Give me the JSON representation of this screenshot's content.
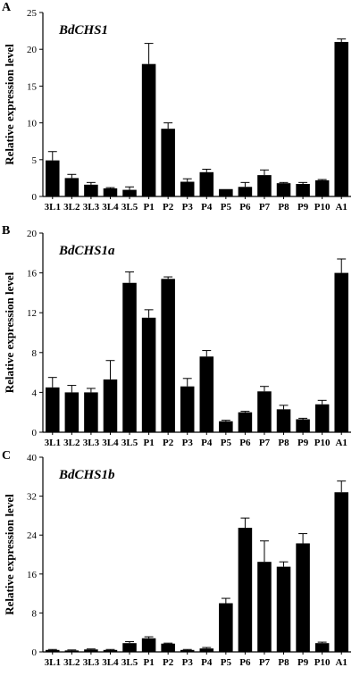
{
  "chart_data": [
    {
      "type": "bar",
      "panel": "A",
      "title": "BdCHS1",
      "ylabel": "Relative expression level",
      "xlabel": "",
      "categories": [
        "3L1",
        "3L2",
        "3L3",
        "3L4",
        "3L5",
        "P1",
        "P2",
        "P3",
        "P4",
        "P5",
        "P6",
        "P7",
        "P8",
        "P9",
        "P10",
        "A1"
      ],
      "values": [
        4.9,
        2.5,
        1.6,
        1.1,
        0.9,
        18.0,
        9.2,
        2.0,
        3.3,
        1.0,
        1.3,
        2.9,
        1.8,
        1.7,
        2.2,
        21.0
      ],
      "errors": [
        1.2,
        0.5,
        0.3,
        0.1,
        0.4,
        2.8,
        0.8,
        0.4,
        0.4,
        0.0,
        0.6,
        0.7,
        0.1,
        0.2,
        0.1,
        0.4
      ],
      "ylim": [
        0,
        25
      ],
      "yticks": [
        0,
        5,
        10,
        15,
        20,
        25
      ],
      "grid": false,
      "legend": "none"
    },
    {
      "type": "bar",
      "panel": "B",
      "title": "BdCHS1a",
      "ylabel": "Relative expression level",
      "xlabel": "",
      "categories": [
        "3L1",
        "3L2",
        "3L3",
        "3L4",
        "3L5",
        "P1",
        "P2",
        "P3",
        "P4",
        "P5",
        "P6",
        "P7",
        "P8",
        "P9",
        "P10",
        "A1"
      ],
      "values": [
        4.5,
        4.0,
        4.0,
        5.3,
        15.0,
        11.5,
        15.4,
        4.6,
        7.6,
        1.1,
        2.0,
        4.1,
        2.3,
        1.3,
        2.8,
        16.0
      ],
      "errors": [
        1.0,
        0.7,
        0.4,
        1.9,
        1.1,
        0.8,
        0.2,
        0.8,
        0.6,
        0.1,
        0.1,
        0.5,
        0.4,
        0.1,
        0.4,
        1.4
      ],
      "ylim": [
        0,
        20
      ],
      "yticks": [
        0,
        4,
        8,
        12,
        16,
        20
      ],
      "grid": false,
      "legend": "none"
    },
    {
      "type": "bar",
      "panel": "C",
      "title": "BdCHS1b",
      "ylabel": "Relative expression level",
      "xlabel": "",
      "categories": [
        "3L1",
        "3L2",
        "3L3",
        "3L4",
        "3L5",
        "P1",
        "P2",
        "P3",
        "P4",
        "P5",
        "P6",
        "P7",
        "P8",
        "P9",
        "P10",
        "A1"
      ],
      "values": [
        0.4,
        0.3,
        0.5,
        0.4,
        1.8,
        2.8,
        1.7,
        0.4,
        0.7,
        10.0,
        25.5,
        18.5,
        17.5,
        22.3,
        1.8,
        32.8
      ],
      "errors": [
        0.1,
        0.1,
        0.1,
        0.1,
        0.3,
        0.3,
        0.1,
        0.1,
        0.2,
        1.0,
        2.0,
        4.3,
        1.0,
        2.0,
        0.2,
        2.3
      ],
      "ylim": [
        0,
        40
      ],
      "yticks": [
        0,
        8,
        16,
        24,
        32,
        40
      ],
      "grid": false,
      "legend": "none"
    }
  ],
  "colors": {
    "bar": "#000000",
    "axis": "#000000",
    "background": "#ffffff"
  }
}
